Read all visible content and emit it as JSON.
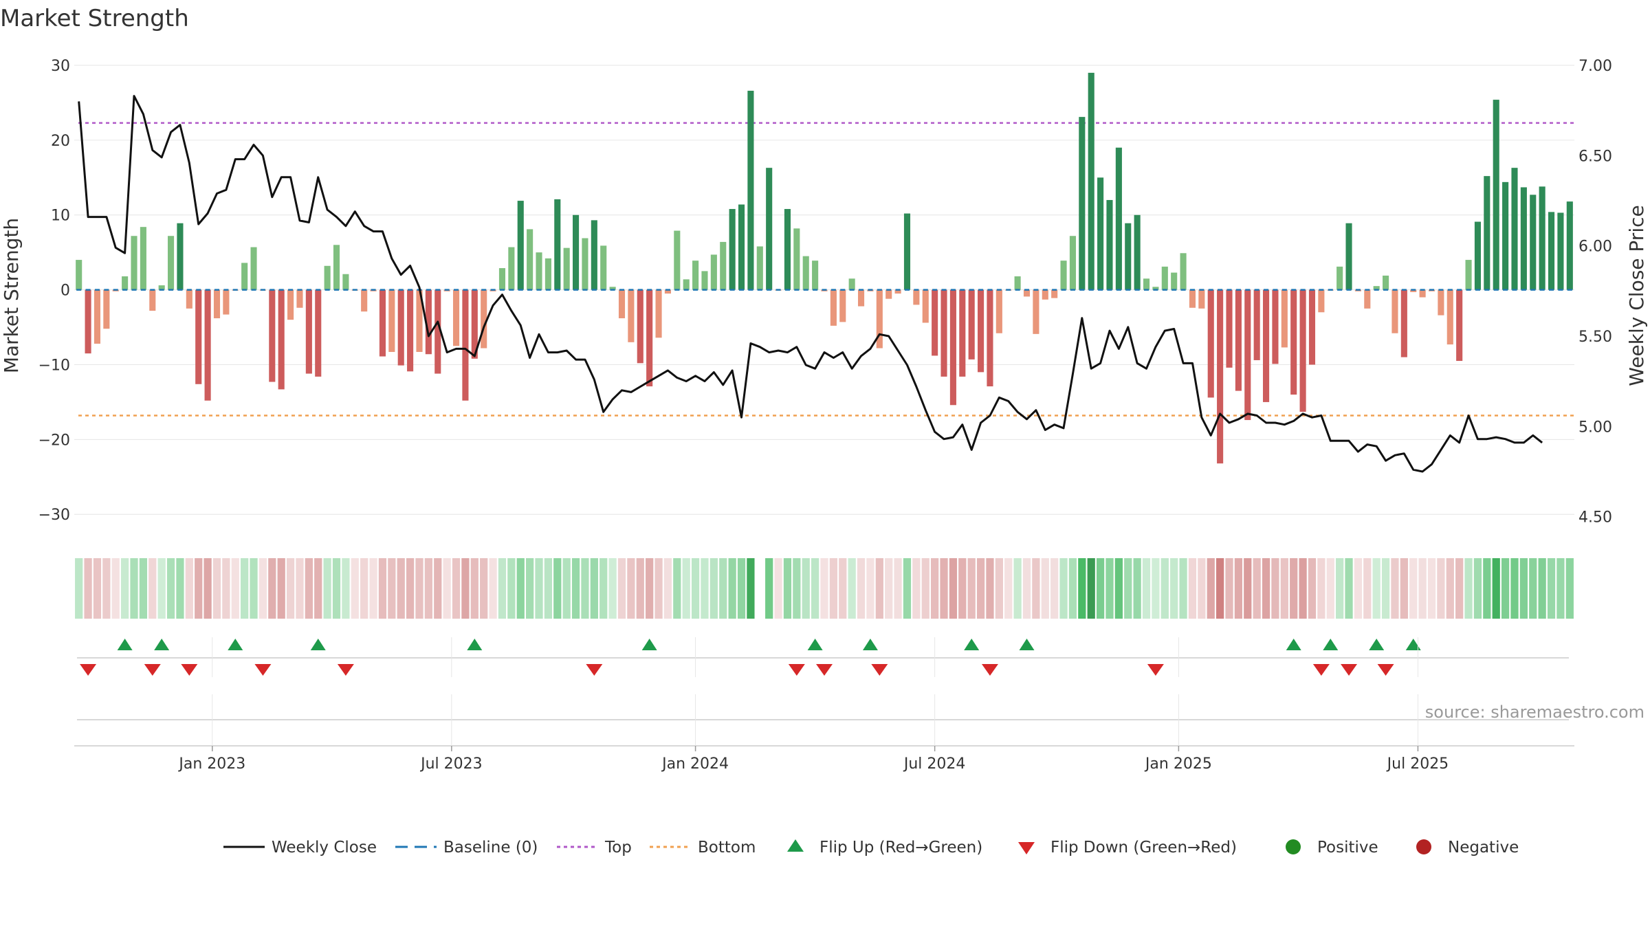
{
  "chart_data": {
    "type": "bar+line",
    "title": "Market Strength",
    "ylabel_left": "Market Strength",
    "ylabel_right": "Weekly Close Price",
    "ylim_left": [
      -32,
      30
    ],
    "yticks_left": [
      {
        "v": 30,
        "t": "30"
      },
      {
        "v": 20,
        "t": "20"
      },
      {
        "v": 10,
        "t": "10"
      },
      {
        "v": 0,
        "t": "0"
      },
      {
        "v": -10,
        "t": "−10"
      },
      {
        "v": -20,
        "t": "−20"
      },
      {
        "v": -30,
        "t": "−30"
      }
    ],
    "ylim_right": [
      4.43,
      7.0
    ],
    "yticks_right": [
      {
        "v": 7.0,
        "t": "7.00"
      },
      {
        "v": 6.5,
        "t": "6.50"
      },
      {
        "v": 6.0,
        "t": "6.00"
      },
      {
        "v": 5.5,
        "t": "5.50"
      },
      {
        "v": 5.0,
        "t": "5.00"
      },
      {
        "v": 4.5,
        "t": "4.50"
      }
    ],
    "x_tick_labels": [
      {
        "i": 15,
        "t": "Jan 2023"
      },
      {
        "i": 41,
        "t": "Jul 2023"
      },
      {
        "i": 67.5,
        "t": "Jan 2024"
      },
      {
        "i": 93.5,
        "t": "Jul 2024"
      },
      {
        "i": 120,
        "t": "Jan 2025"
      },
      {
        "i": 146,
        "t": "Jul 2025"
      }
    ],
    "top_line": 22.3,
    "bottom_line": -16.8,
    "strength": [
      4,
      -8.5,
      -7.2,
      -5.2,
      -0.2,
      1.8,
      7.2,
      8.4,
      -2.8,
      0.6,
      7.2,
      8.9,
      -2.5,
      -12.6,
      -14.8,
      -3.8,
      -3.3,
      -0.1,
      3.6,
      5.7,
      -0.1,
      -12.3,
      -13.3,
      -4.0,
      -2.4,
      -11.2,
      -11.6,
      3.2,
      6.0,
      2.1,
      -0.1,
      -2.9,
      -0.2,
      -8.9,
      -8.3,
      -10.1,
      -10.9,
      -8.3,
      -8.6,
      -11.2,
      -0.2,
      -7.5,
      -14.8,
      -9.2,
      -7.8,
      -0.2,
      2.9,
      5.7,
      11.9,
      8.1,
      5.0,
      4.2,
      12.1,
      5.6,
      10.0,
      6.9,
      9.3,
      5.9,
      0.4,
      -3.8,
      -7.0,
      -9.8,
      -12.9,
      -6.4,
      -0.5,
      7.9,
      1.4,
      3.9,
      2.5,
      4.7,
      6.4,
      10.8,
      11.4,
      26.6,
      5.8,
      16.3,
      -0.1,
      10.8,
      8.2,
      4.5,
      3.9,
      -0.2,
      -4.8,
      -4.3,
      1.5,
      -2.2,
      -0.2,
      -7.8,
      -1.2,
      -0.5,
      10.2,
      -2.0,
      -4.4,
      -8.8,
      -11.6,
      -15.4,
      -11.6,
      -9.3,
      -11.0,
      -12.9,
      -5.8,
      -0.1,
      1.8,
      -0.9,
      -5.9,
      -1.3,
      -1.1,
      3.9,
      7.2,
      23.1,
      29.0,
      15.0,
      12.0,
      19.0,
      8.9,
      10.0,
      1.5,
      0.4,
      3.1,
      2.3,
      4.9,
      -2.4,
      -2.5,
      -14.4,
      -23.2,
      -10.4,
      -13.5,
      -17.4,
      -9.4,
      -15.0,
      -9.9,
      -7.7,
      -14.0,
      -16.3,
      -10.0,
      -3.0,
      -0.1,
      3.1,
      8.9,
      -0.2,
      -2.5,
      0.5,
      1.9,
      -5.8,
      -9.0,
      -0.3,
      -1.0,
      -0.2,
      -3.4,
      -7.3,
      -9.5,
      4.0,
      9.1,
      15.2,
      25.4,
      14.4,
      16.3,
      13.7,
      12.7,
      13.8,
      10.4,
      10.3,
      11.8
    ],
    "price": [
      6.8,
      6.16,
      6.16,
      6.16,
      5.99,
      5.96,
      6.83,
      6.73,
      6.53,
      6.49,
      6.63,
      6.67,
      6.46,
      6.12,
      6.18,
      6.29,
      6.31,
      6.48,
      6.48,
      6.56,
      6.5,
      6.27,
      6.38,
      6.38,
      6.14,
      6.13,
      6.38,
      6.2,
      6.16,
      6.11,
      6.19,
      6.11,
      6.08,
      6.08,
      5.93,
      5.84,
      5.89,
      5.77,
      5.5,
      5.58,
      5.41,
      5.43,
      5.43,
      5.39,
      5.55,
      5.67,
      5.73,
      5.64,
      5.56,
      5.38,
      5.51,
      5.41,
      5.41,
      5.42,
      5.37,
      5.37,
      5.26,
      5.08,
      5.15,
      5.2,
      5.19,
      5.22,
      5.25,
      5.28,
      5.31,
      5.27,
      5.25,
      5.28,
      5.25,
      5.3,
      5.23,
      5.31,
      5.05,
      5.46,
      5.44,
      5.41,
      5.42,
      5.41,
      5.44,
      5.34,
      5.32,
      5.41,
      5.38,
      5.41,
      5.32,
      5.39,
      5.43,
      5.51,
      5.5,
      5.42,
      5.34,
      5.22,
      5.09,
      4.97,
      4.93,
      4.94,
      5.01,
      4.87,
      5.02,
      5.06,
      5.16,
      5.14,
      5.08,
      5.04,
      5.09,
      4.98,
      5.01,
      4.99,
      5.29,
      5.6,
      5.32,
      5.35,
      5.53,
      5.43,
      5.55,
      5.35,
      5.32,
      5.44,
      5.53,
      5.54,
      5.35,
      5.35,
      5.05,
      4.95,
      5.07,
      5.02,
      5.04,
      5.07,
      5.06,
      5.02,
      5.02,
      5.01,
      5.03,
      5.07,
      5.05,
      5.06,
      4.92,
      4.92,
      4.92,
      4.86,
      4.9,
      4.89,
      4.81,
      4.84,
      4.85,
      4.76,
      4.75,
      4.79,
      4.87,
      4.95,
      4.91,
      5.06,
      4.93,
      4.93,
      4.94,
      4.93,
      4.91,
      4.91,
      4.95,
      4.91
    ],
    "heat_gaps": [
      74
    ],
    "flip_up": [
      5,
      9,
      17,
      26,
      43,
      62,
      80,
      86,
      97,
      103,
      132,
      136,
      141,
      145
    ],
    "flip_down": [
      1,
      8,
      12,
      20,
      29,
      56,
      78,
      81,
      87,
      99,
      117,
      135,
      138,
      142
    ],
    "colors": {
      "green_dark": "#2e8b57",
      "green_light": "#7fbf7f",
      "red_dark": "#cd5c5c",
      "red_light": "#e9967a",
      "line": "#111111",
      "top": "#b058c8",
      "bottom": "#f0a050",
      "baseline": "#1f77b4",
      "flip_up": "#1e9a4a",
      "flip_down": "#d62728",
      "positive": "#228b22",
      "negative": "#b22222"
    }
  },
  "legend": [
    {
      "key": "line",
      "label": "Weekly Close"
    },
    {
      "key": "baseline",
      "label": "Baseline (0)"
    },
    {
      "key": "top",
      "label": "Top"
    },
    {
      "key": "bottom",
      "label": "Bottom"
    },
    {
      "key": "flip_up",
      "label": "Flip Up (Red→Green)"
    },
    {
      "key": "flip_down",
      "label": "Flip Down (Green→Red)"
    },
    {
      "key": "positive",
      "label": "Positive"
    },
    {
      "key": "negative",
      "label": "Negative"
    }
  ],
  "source_text": "source: sharemaestro.com"
}
